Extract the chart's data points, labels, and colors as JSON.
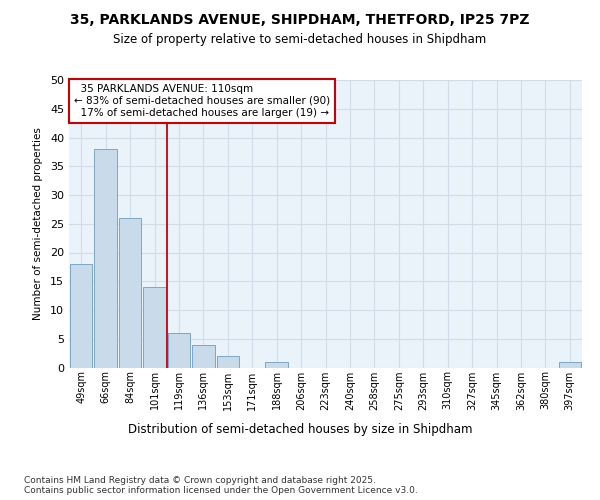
{
  "title1": "35, PARKLANDS AVENUE, SHIPDHAM, THETFORD, IP25 7PZ",
  "title2": "Size of property relative to semi-detached houses in Shipdham",
  "xlabel": "Distribution of semi-detached houses by size in Shipdham",
  "ylabel": "Number of semi-detached properties",
  "categories": [
    "49sqm",
    "66sqm",
    "84sqm",
    "101sqm",
    "119sqm",
    "136sqm",
    "153sqm",
    "171sqm",
    "188sqm",
    "206sqm",
    "223sqm",
    "240sqm",
    "258sqm",
    "275sqm",
    "293sqm",
    "310sqm",
    "327sqm",
    "345sqm",
    "362sqm",
    "380sqm",
    "397sqm"
  ],
  "values": [
    18,
    38,
    26,
    14,
    6,
    4,
    2,
    0,
    1,
    0,
    0,
    0,
    0,
    0,
    0,
    0,
    0,
    0,
    0,
    0,
    1
  ],
  "bar_color": "#c9daea",
  "bar_edge_color": "#7aa8c8",
  "property_label": "35 PARKLANDS AVENUE: 110sqm",
  "pct_smaller": 83,
  "num_smaller": 90,
  "pct_larger": 17,
  "num_larger": 19,
  "vline_x_index": 3.5,
  "ylim": [
    0,
    50
  ],
  "yticks": [
    0,
    5,
    10,
    15,
    20,
    25,
    30,
    35,
    40,
    45,
    50
  ],
  "annotation_box_color": "#ffffff",
  "annotation_box_edge": "#cc0000",
  "vline_color": "#cc0000",
  "grid_color": "#d0dde8",
  "background_color": "#ffffff",
  "plot_bg_color": "#eaf2fa",
  "footer": "Contains HM Land Registry data © Crown copyright and database right 2025.\nContains public sector information licensed under the Open Government Licence v3.0."
}
